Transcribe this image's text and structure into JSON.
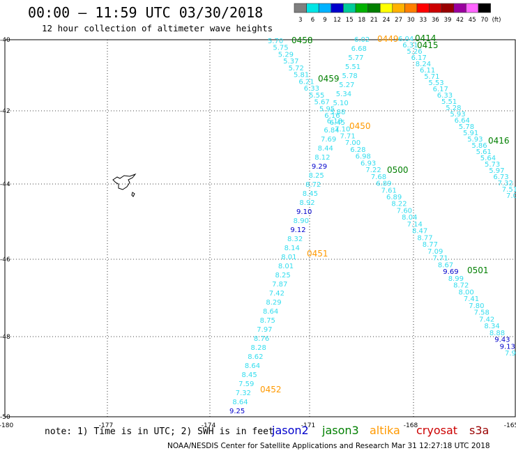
{
  "title": "00:00  –  11:59 UTC 03/30/2018",
  "subtitle": "12 hour collection of altimeter wave heights",
  "colorbar": {
    "labels": [
      "3",
      "6",
      "9",
      "12",
      "15",
      "18",
      "21",
      "24",
      "27",
      "30",
      "33",
      "36",
      "39",
      "42",
      "45",
      "70"
    ],
    "unit": "(ft)",
    "colors": [
      "#7f7f7f",
      "#00e5e5",
      "#00b2ff",
      "#0000cc",
      "#00cc99",
      "#00b200",
      "#007f00",
      "#ffff00",
      "#ffb200",
      "#ff7f00",
      "#ff0000",
      "#cc0000",
      "#990000",
      "#99009e",
      "#ff66ff",
      "#000000"
    ]
  },
  "axes": {
    "lat_labels": [
      "-40",
      "-42",
      "-44",
      "-46",
      "-48",
      "-50"
    ],
    "lon_labels": [
      "-180",
      "-177",
      "-174",
      "-171",
      "-168",
      "-165"
    ]
  },
  "note": "note: 1) Time is in UTC; 2) SWH is in feet",
  "satellites": [
    {
      "name": "jason2",
      "color": "#0000cc"
    },
    {
      "name": "jason3",
      "color": "#007f00"
    },
    {
      "name": "altika",
      "color": "#ff9900"
    },
    {
      "name": "cryosat",
      "color": "#cc0000"
    },
    {
      "name": "s3a",
      "color": "#990000"
    }
  ],
  "credit": "NOAA/NESDIS Center for Satellite Applications and Research   Mar 31 12:27:18 UTC 2018",
  "time_labels": [
    {
      "text": "0458",
      "sat": "jason3"
    },
    {
      "text": "0459",
      "sat": "jason3"
    },
    {
      "text": "0500",
      "sat": "jason3"
    },
    {
      "text": "0501",
      "sat": "jason3"
    },
    {
      "text": "0414",
      "sat": "jason3"
    },
    {
      "text": "0415",
      "sat": "jason3"
    },
    {
      "text": "0416",
      "sat": "jason3"
    },
    {
      "text": "0449",
      "sat": "altika"
    },
    {
      "text": "0450",
      "sat": "altika"
    },
    {
      "text": "0451",
      "sat": "altika"
    },
    {
      "text": "0452",
      "sat": "altika"
    }
  ],
  "tracks": {
    "jason3_desc": [
      "5.70",
      "5.75",
      "5.29",
      "5.37",
      "5.72",
      "5.81",
      "6.21",
      "6.33",
      "5.55",
      "5.67",
      "5.95",
      "6.16",
      "6.45",
      "7.10",
      "7.71",
      "7.00",
      "6.28",
      "6.98",
      "6.93",
      "7.22",
      "7.68",
      "6.89",
      "7.61",
      "6.89",
      "8.22",
      "7.60",
      "8.04",
      "7.14",
      "8.47",
      "8.77",
      "8.77",
      "7.09",
      "7.71",
      "8.67",
      "9.69",
      "8.99",
      "8.72",
      "8.00",
      "7.41",
      "7.80",
      "7.58",
      "7.42",
      "8.34",
      "8.88",
      "9.43",
      "9.13",
      "7.95"
    ],
    "altika_asc": [
      "9.25",
      "8.64",
      "7.32",
      "7.59",
      "8.45",
      "8.64",
      "8.62",
      "8.28",
      "8.76",
      "7.97",
      "8.75",
      "8.64",
      "8.29",
      "7.42",
      "7.87",
      "8.25",
      "8.01",
      "8.01",
      "8.14",
      "8.32",
      "9.12",
      "8.90",
      "9.10",
      "8.92",
      "8.45",
      "8.72",
      "8.25",
      "9.29",
      "8.12",
      "8.44",
      "7.69",
      "6.84",
      "6.18",
      "5.88",
      "5.10",
      "5.34",
      "5.27",
      "5.78",
      "5.51",
      "5.77",
      "6.68",
      "6.02"
    ],
    "jason3_east": [
      "6.04",
      "6.31",
      "5.26",
      "6.17",
      "8.24",
      "6.11",
      "5.71",
      "5.53",
      "6.17",
      "6.33",
      "5.51",
      "5.28",
      "5.93",
      "6.64",
      "5.78",
      "5.91",
      "5.93",
      "5.86",
      "5.61",
      "5.64",
      "5.73",
      "5.97",
      "6.73",
      "7.32",
      "7.51",
      "7.00"
    ]
  },
  "track_colors": {
    "desc": [
      "c",
      "c",
      "c",
      "c",
      "c",
      "c",
      "c",
      "c",
      "c",
      "c",
      "c",
      "c",
      "c",
      "c",
      "c",
      "c",
      "c",
      "c",
      "c",
      "c",
      "c",
      "c",
      "c",
      "c",
      "c",
      "c",
      "c",
      "c",
      "c",
      "c",
      "c",
      "c",
      "c",
      "c",
      "b",
      "c",
      "c",
      "c",
      "c",
      "c",
      "c",
      "c",
      "c",
      "c",
      "b",
      "b",
      "c"
    ],
    "asc": [
      "b",
      "c",
      "c",
      "c",
      "c",
      "c",
      "c",
      "c",
      "c",
      "c",
      "c",
      "c",
      "c",
      "c",
      "c",
      "c",
      "c",
      "c",
      "c",
      "c",
      "b",
      "c",
      "b",
      "c",
      "c",
      "c",
      "c",
      "b",
      "c",
      "c",
      "c",
      "c",
      "c",
      "c",
      "c",
      "c",
      "c",
      "c",
      "c",
      "c",
      "c",
      "c"
    ]
  }
}
